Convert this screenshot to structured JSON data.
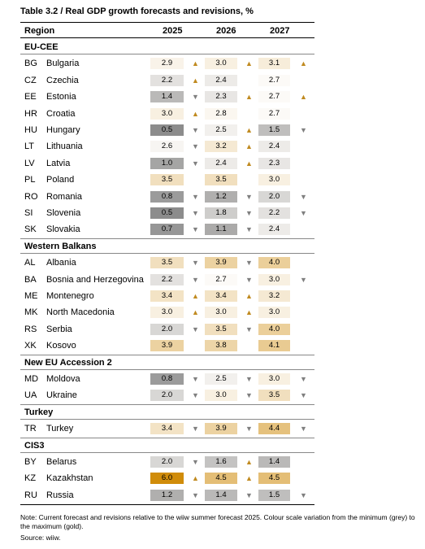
{
  "title": "Table 3.2 / Real GDP growth forecasts and revisions, %",
  "header": [
    "Region",
    "2025",
    "2026",
    "2027"
  ],
  "groups": [
    {
      "title": "EU-CEE",
      "rows": [
        {
          "code": "BG",
          "name": "Bulgaria",
          "values": [
            "2.9",
            "3.0",
            "3.1"
          ],
          "revisions": [
            "▲",
            "▲",
            "▲"
          ]
        },
        {
          "code": "CZ",
          "name": "Czechia",
          "values": [
            "2.2",
            "2.4",
            "2.7"
          ],
          "revisions": [
            "▲",
            null,
            null
          ]
        },
        {
          "code": "EE",
          "name": "Estonia",
          "values": [
            "1.4",
            "2.3",
            "2.7"
          ],
          "revisions": [
            "▼",
            "▲",
            "▲"
          ]
        },
        {
          "code": "HR",
          "name": "Croatia",
          "values": [
            "3.0",
            "2.8",
            "2.7"
          ],
          "revisions": [
            "▲",
            null,
            null
          ]
        },
        {
          "code": "HU",
          "name": "Hungary",
          "values": [
            "0.5",
            "2.5",
            "1.5"
          ],
          "revisions": [
            "▼",
            "▲",
            "▼"
          ]
        },
        {
          "code": "LT",
          "name": "Lithuania",
          "values": [
            "2.6",
            "3.2",
            "2.4"
          ],
          "revisions": [
            "▼",
            "▲",
            null
          ]
        },
        {
          "code": "LV",
          "name": "Latvia",
          "values": [
            "1.0",
            "2.4",
            "2.3"
          ],
          "revisions": [
            "▼",
            "▲",
            null
          ]
        },
        {
          "code": "PL",
          "name": "Poland",
          "values": [
            "3.5",
            "3.5",
            "3.0"
          ],
          "revisions": [
            null,
            null,
            null
          ]
        },
        {
          "code": "RO",
          "name": "Romania",
          "values": [
            "0.8",
            "1.2",
            "2.0"
          ],
          "revisions": [
            "▼",
            "▼",
            "▼"
          ]
        },
        {
          "code": "SI",
          "name": "Slovenia",
          "values": [
            "0.5",
            "1.8",
            "2.2"
          ],
          "revisions": [
            "▼",
            "▼",
            "▼"
          ]
        },
        {
          "code": "SK",
          "name": "Slovakia",
          "values": [
            "0.7",
            "1.1",
            "2.4"
          ],
          "revisions": [
            "▼",
            "▼",
            null
          ]
        }
      ]
    },
    {
      "title": "Western Balkans",
      "rows": [
        {
          "code": "AL",
          "name": "Albania",
          "values": [
            "3.5",
            "3.9",
            "4.0"
          ],
          "revisions": [
            "▼",
            "▼",
            null
          ]
        },
        {
          "code": "BA",
          "name": "Bosnia and Herzegovina",
          "values": [
            "2.2",
            "2.7",
            "3.0"
          ],
          "revisions": [
            "▼",
            "▼",
            "▼"
          ]
        },
        {
          "code": "ME",
          "name": "Montenegro",
          "values": [
            "3.4",
            "3.4",
            "3.2"
          ],
          "revisions": [
            "▲",
            "▲",
            null
          ]
        },
        {
          "code": "MK",
          "name": "North Macedonia",
          "values": [
            "3.0",
            "3.0",
            "3.0"
          ],
          "revisions": [
            "▲",
            "▲",
            null
          ]
        },
        {
          "code": "RS",
          "name": "Serbia",
          "values": [
            "2.0",
            "3.5",
            "4.0"
          ],
          "revisions": [
            "▼",
            "▼",
            null
          ]
        },
        {
          "code": "XK",
          "name": "Kosovo",
          "values": [
            "3.9",
            "3.8",
            "4.1"
          ],
          "revisions": [
            null,
            null,
            null
          ]
        }
      ]
    },
    {
      "title": "New EU Accession 2",
      "rows": [
        {
          "code": "MD",
          "name": "Moldova",
          "values": [
            "0.8",
            "2.5",
            "3.0"
          ],
          "revisions": [
            "▼",
            "▼",
            "▼"
          ]
        },
        {
          "code": "UA",
          "name": "Ukraine",
          "values": [
            "2.0",
            "3.0",
            "3.5"
          ],
          "revisions": [
            "▼",
            "▼",
            "▼"
          ]
        }
      ]
    },
    {
      "title": "Turkey",
      "rows": [
        {
          "code": "TR",
          "name": "Turkey",
          "values": [
            "3.4",
            "3.9",
            "4.4"
          ],
          "revisions": [
            "▼",
            "▼",
            "▼"
          ]
        }
      ]
    },
    {
      "title": "CIS3",
      "rows": [
        {
          "code": "BY",
          "name": "Belarus",
          "values": [
            "2.0",
            "1.6",
            "1.4"
          ],
          "revisions": [
            "▼",
            "▲",
            null
          ]
        },
        {
          "code": "KZ",
          "name": "Kazakhstan",
          "values": [
            "6.0",
            "4.5",
            "4.5"
          ],
          "revisions": [
            "▲",
            "▲",
            null
          ]
        },
        {
          "code": "RU",
          "name": "Russia",
          "values": [
            "1.2",
            "1.4",
            "1.5"
          ],
          "revisions": [
            "▼",
            "▼",
            "▼"
          ]
        }
      ]
    }
  ],
  "note": "Note: Current forecast and revisions relative to the wiiw summer forecast 2025. Colour scale variation from the minimum (grey) to the maximum (gold).",
  "source": "Source: wiiw."
}
